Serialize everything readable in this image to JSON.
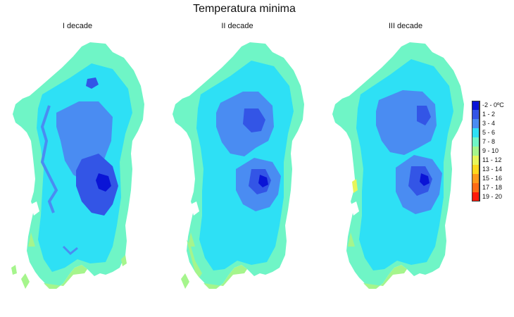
{
  "title": "Temperatura minima",
  "panels": [
    {
      "label": "I decade"
    },
    {
      "label": "II decade"
    },
    {
      "label": "III decade"
    }
  ],
  "legend": [
    {
      "label": "-2 - 0ºC",
      "color": "#0a14d6"
    },
    {
      "label": "1 - 2",
      "color": "#3355e6"
    },
    {
      "label": "3 - 4",
      "color": "#4a8cf2"
    },
    {
      "label": "5 - 6",
      "color": "#2ee0f5"
    },
    {
      "label": "7 - 8",
      "color": "#6ff5c6"
    },
    {
      "label": "9 - 10",
      "color": "#a5f58c"
    },
    {
      "label": "11 - 12",
      "color": "#e8f55a"
    },
    {
      "label": "13 - 14",
      "color": "#ffd81c"
    },
    {
      "label": "15 - 16",
      "color": "#ff9a1a"
    },
    {
      "label": "17 - 18",
      "color": "#ff6a14"
    },
    {
      "label": "19 - 20",
      "color": "#ff1a0a"
    }
  ]
}
